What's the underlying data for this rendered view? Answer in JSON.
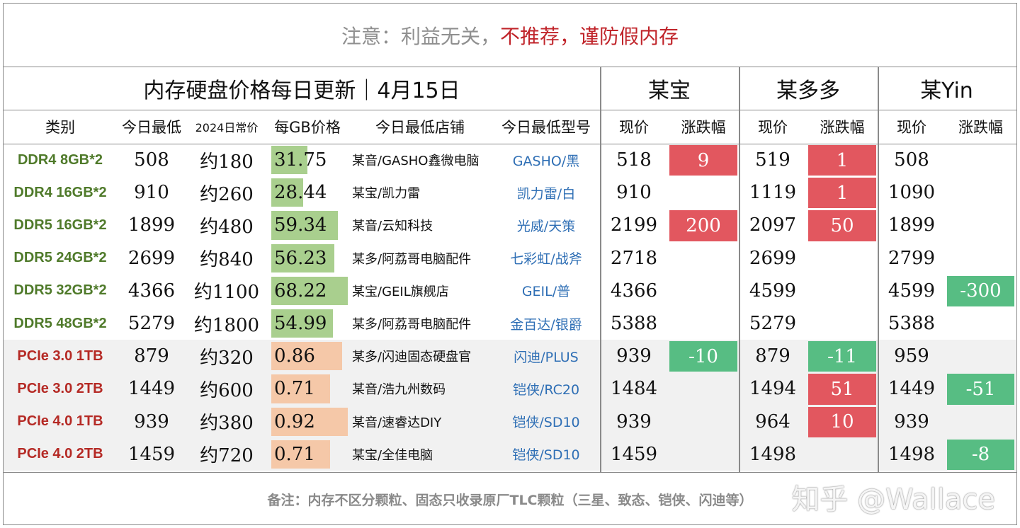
{
  "notice": {
    "muted": "注意：利益无关，",
    "warn": "不推荐，谨防假内存"
  },
  "title": "内存硬盘价格每日更新｜4月15日",
  "platforms": [
    "某宝",
    "某多多",
    "某Yin"
  ],
  "headers": {
    "category": "类别",
    "today_low": "今日最低",
    "usual_2024": "2024日常价",
    "per_gb": "每GB价格",
    "store": "今日最低店铺",
    "model": "今日最低型号",
    "price": "现价",
    "change": "涨跌幅"
  },
  "rows": [
    {
      "cat": "DDR4 8GB*2",
      "kind": "mem",
      "low": "508",
      "usual": "约180",
      "gb": "31.75",
      "gb_fill": 0.47,
      "store": "某音/GASHO鑫微电脑",
      "model": "GASHO/黑",
      "tb_price": "518",
      "tb_chg": "9",
      "tb_dir": "up",
      "pdd_price": "519",
      "pdd_chg": "1",
      "pdd_dir": "up",
      "dy_price": "508",
      "dy_chg": "",
      "dy_dir": ""
    },
    {
      "cat": "DDR4 16GB*2",
      "kind": "mem",
      "low": "910",
      "usual": "约260",
      "gb": "28.44",
      "gb_fill": 0.42,
      "store": "某宝/凯力雷",
      "model": "凯力雷/白",
      "tb_price": "910",
      "tb_chg": "",
      "tb_dir": "",
      "pdd_price": "1119",
      "pdd_chg": "1",
      "pdd_dir": "up",
      "dy_price": "1090",
      "dy_chg": "",
      "dy_dir": ""
    },
    {
      "cat": "DDR5 16GB*2",
      "kind": "mem",
      "low": "1899",
      "usual": "约480",
      "gb": "59.34",
      "gb_fill": 0.87,
      "store": "某音/云知科技",
      "model": "光威/天策",
      "tb_price": "2199",
      "tb_chg": "200",
      "tb_dir": "up",
      "pdd_price": "2097",
      "pdd_chg": "50",
      "pdd_dir": "up",
      "dy_price": "1899",
      "dy_chg": "",
      "dy_dir": ""
    },
    {
      "cat": "DDR5 24GB*2",
      "kind": "mem",
      "low": "2699",
      "usual": "约840",
      "gb": "56.23",
      "gb_fill": 0.82,
      "store": "某多/阿荔哥电脑配件",
      "model": "七彩虹/战斧",
      "tb_price": "2718",
      "tb_chg": "",
      "tb_dir": "",
      "pdd_price": "2699",
      "pdd_chg": "",
      "pdd_dir": "",
      "dy_price": "2799",
      "dy_chg": "",
      "dy_dir": ""
    },
    {
      "cat": "DDR5 32GB*2",
      "kind": "mem",
      "low": "4366",
      "usual": "约1100",
      "gb": "68.22",
      "gb_fill": 1.0,
      "store": "某宝/GEIL旗舰店",
      "model": "GEIL/普",
      "tb_price": "4366",
      "tb_chg": "",
      "tb_dir": "",
      "pdd_price": "4599",
      "pdd_chg": "",
      "pdd_dir": "",
      "dy_price": "4599",
      "dy_chg": "-300",
      "dy_dir": "down"
    },
    {
      "cat": "DDR5 48GB*2",
      "kind": "mem",
      "low": "5279",
      "usual": "约1800",
      "gb": "54.99",
      "gb_fill": 0.81,
      "store": "某多/阿荔哥电脑配件",
      "model": "金百达/银爵",
      "tb_price": "5388",
      "tb_chg": "",
      "tb_dir": "",
      "pdd_price": "5279",
      "pdd_chg": "",
      "pdd_dir": "",
      "dy_price": "5388",
      "dy_chg": "",
      "dy_dir": ""
    },
    {
      "cat": "PCIe 3.0 1TB",
      "kind": "ssd",
      "low": "879",
      "usual": "约320",
      "gb": "0.86",
      "gb_fill": 0.93,
      "store": "某多/闪迪固态硬盘官",
      "model": "闪迪/PLUS",
      "tb_price": "939",
      "tb_chg": "-10",
      "tb_dir": "down",
      "pdd_price": "879",
      "pdd_chg": "-11",
      "pdd_dir": "down",
      "dy_price": "959",
      "dy_chg": "",
      "dy_dir": ""
    },
    {
      "cat": "PCIe 3.0 2TB",
      "kind": "ssd",
      "low": "1449",
      "usual": "约600",
      "gb": "0.71",
      "gb_fill": 0.77,
      "store": "某音/浩九州数码",
      "model": "铠侠/RC20",
      "tb_price": "1484",
      "tb_chg": "",
      "tb_dir": "",
      "pdd_price": "1494",
      "pdd_chg": "51",
      "pdd_dir": "up",
      "dy_price": "1449",
      "dy_chg": "-51",
      "dy_dir": "down"
    },
    {
      "cat": "PCIe 4.0 1TB",
      "kind": "ssd",
      "low": "939",
      "usual": "约380",
      "gb": "0.92",
      "gb_fill": 1.0,
      "store": "某音/速睿达DIY",
      "model": "铠侠/SD10",
      "tb_price": "939",
      "tb_chg": "",
      "tb_dir": "",
      "pdd_price": "964",
      "pdd_chg": "10",
      "pdd_dir": "up",
      "dy_price": "939",
      "dy_chg": "",
      "dy_dir": ""
    },
    {
      "cat": "PCIe 4.0 2TB",
      "kind": "ssd",
      "low": "1459",
      "usual": "约720",
      "gb": "0.71",
      "gb_fill": 0.77,
      "store": "某宝/全佳电脑",
      "model": "铠侠/SD10",
      "tb_price": "1459",
      "tb_chg": "",
      "tb_dir": "",
      "pdd_price": "1498",
      "pdd_chg": "",
      "pdd_dir": "",
      "dy_price": "1498",
      "dy_chg": "-8",
      "dy_dir": "down"
    }
  ],
  "footnote": "备注：内存不区分颗粒、固态只收录原厂TLC颗粒（三星、致态、铠侠、闪迪等）",
  "watermark": "知乎 @Wallace",
  "colors": {
    "mem_label": "#4f7a2a",
    "ssd_label": "#b52a25",
    "up": "#e2575f",
    "down": "#57bd83",
    "mem_bar": "#a9cf8e",
    "ssd_bar": "#f5c8a8",
    "model_text": "#2f6fb5"
  }
}
